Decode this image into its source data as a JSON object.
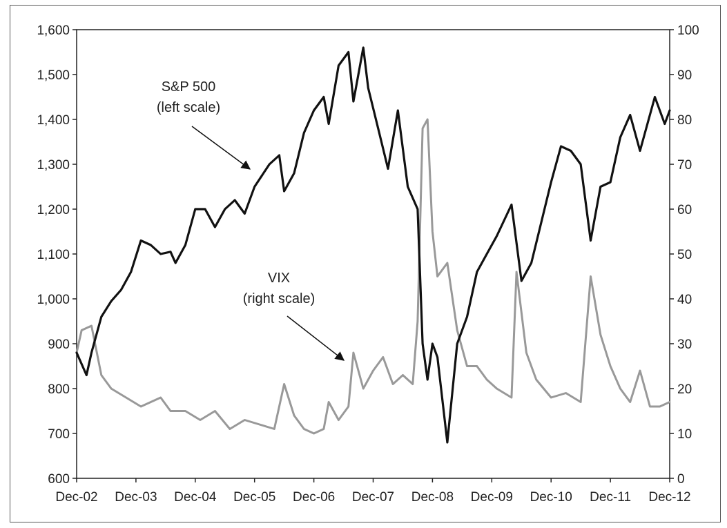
{
  "chart_data": {
    "type": "line",
    "x_tick_labels": [
      "Dec-02",
      "Dec-03",
      "Dec-04",
      "Dec-05",
      "Dec-06",
      "Dec-07",
      "Dec-08",
      "Dec-09",
      "Dec-10",
      "Dec-11",
      "Dec-12"
    ],
    "x_range": [
      "2002-12",
      "2012-12"
    ],
    "y_left": {
      "ticks": [
        "600",
        "700",
        "800",
        "900",
        "1,000",
        "1,100",
        "1,200",
        "1,300",
        "1,400",
        "1,500",
        "1,600"
      ],
      "range": [
        600,
        1600
      ]
    },
    "y_right": {
      "ticks": [
        "0",
        "10",
        "20",
        "30",
        "40",
        "50",
        "60",
        "70",
        "80",
        "90",
        "100"
      ],
      "range": [
        0,
        100
      ]
    },
    "series": [
      {
        "name": "S&P 500",
        "axis": "left",
        "color": "#111111",
        "points": [
          [
            "2002-12",
            880
          ],
          [
            "2003-02",
            830
          ],
          [
            "2003-03",
            880
          ],
          [
            "2003-05",
            960
          ],
          [
            "2003-07",
            995
          ],
          [
            "2003-09",
            1020
          ],
          [
            "2003-11",
            1060
          ],
          [
            "2004-01",
            1130
          ],
          [
            "2004-03",
            1120
          ],
          [
            "2004-05",
            1100
          ],
          [
            "2004-07",
            1105
          ],
          [
            "2004-08",
            1080
          ],
          [
            "2004-10",
            1120
          ],
          [
            "2004-12",
            1200
          ],
          [
            "2005-02",
            1200
          ],
          [
            "2005-04",
            1160
          ],
          [
            "2005-06",
            1200
          ],
          [
            "2005-08",
            1220
          ],
          [
            "2005-10",
            1190
          ],
          [
            "2005-12",
            1250
          ],
          [
            "2006-03",
            1300
          ],
          [
            "2006-05",
            1320
          ],
          [
            "2006-06",
            1240
          ],
          [
            "2006-08",
            1280
          ],
          [
            "2006-10",
            1370
          ],
          [
            "2006-12",
            1420
          ],
          [
            "2007-02",
            1450
          ],
          [
            "2007-03",
            1390
          ],
          [
            "2007-05",
            1520
          ],
          [
            "2007-07",
            1550
          ],
          [
            "2007-08",
            1440
          ],
          [
            "2007-10",
            1560
          ],
          [
            "2007-11",
            1470
          ],
          [
            "2008-01",
            1380
          ],
          [
            "2008-03",
            1290
          ],
          [
            "2008-05",
            1420
          ],
          [
            "2008-07",
            1250
          ],
          [
            "2008-09",
            1200
          ],
          [
            "2008-10",
            900
          ],
          [
            "2008-11",
            820
          ],
          [
            "2008-12",
            900
          ],
          [
            "2009-01",
            870
          ],
          [
            "2009-03",
            680
          ],
          [
            "2009-05",
            900
          ],
          [
            "2009-07",
            960
          ],
          [
            "2009-09",
            1060
          ],
          [
            "2009-11",
            1100
          ],
          [
            "2010-01",
            1140
          ],
          [
            "2010-04",
            1210
          ],
          [
            "2010-06",
            1040
          ],
          [
            "2010-08",
            1080
          ],
          [
            "2010-10",
            1170
          ],
          [
            "2010-12",
            1260
          ],
          [
            "2011-02",
            1340
          ],
          [
            "2011-04",
            1330
          ],
          [
            "2011-06",
            1300
          ],
          [
            "2011-08",
            1130
          ],
          [
            "2011-10",
            1250
          ],
          [
            "2011-12",
            1260
          ],
          [
            "2012-02",
            1360
          ],
          [
            "2012-04",
            1410
          ],
          [
            "2012-06",
            1330
          ],
          [
            "2012-09",
            1450
          ],
          [
            "2012-11",
            1390
          ],
          [
            "2012-12",
            1420
          ]
        ]
      },
      {
        "name": "VIX",
        "axis": "right",
        "color": "#999999",
        "points": [
          [
            "2002-12",
            28
          ],
          [
            "2003-01",
            33
          ],
          [
            "2003-03",
            34
          ],
          [
            "2003-05",
            23
          ],
          [
            "2003-07",
            20
          ],
          [
            "2003-10",
            18
          ],
          [
            "2004-01",
            16
          ],
          [
            "2004-03",
            17
          ],
          [
            "2004-05",
            18
          ],
          [
            "2004-07",
            15
          ],
          [
            "2004-10",
            15
          ],
          [
            "2005-01",
            13
          ],
          [
            "2005-04",
            15
          ],
          [
            "2005-07",
            11
          ],
          [
            "2005-10",
            13
          ],
          [
            "2006-01",
            12
          ],
          [
            "2006-04",
            11
          ],
          [
            "2006-06",
            21
          ],
          [
            "2006-08",
            14
          ],
          [
            "2006-10",
            11
          ],
          [
            "2006-12",
            10
          ],
          [
            "2007-02",
            11
          ],
          [
            "2007-03",
            17
          ],
          [
            "2007-05",
            13
          ],
          [
            "2007-07",
            16
          ],
          [
            "2007-08",
            28
          ],
          [
            "2007-10",
            20
          ],
          [
            "2007-12",
            24
          ],
          [
            "2008-02",
            27
          ],
          [
            "2008-04",
            21
          ],
          [
            "2008-06",
            23
          ],
          [
            "2008-08",
            21
          ],
          [
            "2008-09",
            35
          ],
          [
            "2008-10",
            78
          ],
          [
            "2008-11",
            80
          ],
          [
            "2008-12",
            55
          ],
          [
            "2009-01",
            45
          ],
          [
            "2009-03",
            48
          ],
          [
            "2009-05",
            33
          ],
          [
            "2009-07",
            25
          ],
          [
            "2009-09",
            25
          ],
          [
            "2009-11",
            22
          ],
          [
            "2010-01",
            20
          ],
          [
            "2010-04",
            18
          ],
          [
            "2010-05",
            46
          ],
          [
            "2010-07",
            28
          ],
          [
            "2010-09",
            22
          ],
          [
            "2010-12",
            18
          ],
          [
            "2011-03",
            19
          ],
          [
            "2011-06",
            17
          ],
          [
            "2011-08",
            45
          ],
          [
            "2011-10",
            32
          ],
          [
            "2011-12",
            25
          ],
          [
            "2012-02",
            20
          ],
          [
            "2012-04",
            17
          ],
          [
            "2012-06",
            24
          ],
          [
            "2012-08",
            16
          ],
          [
            "2012-10",
            16
          ],
          [
            "2012-12",
            17
          ]
        ]
      }
    ],
    "annotations": [
      {
        "line1": "S&P 500",
        "line2": "(left scale)"
      },
      {
        "line1": "VIX",
        "line2": "(right scale)"
      }
    ],
    "grid": false
  }
}
